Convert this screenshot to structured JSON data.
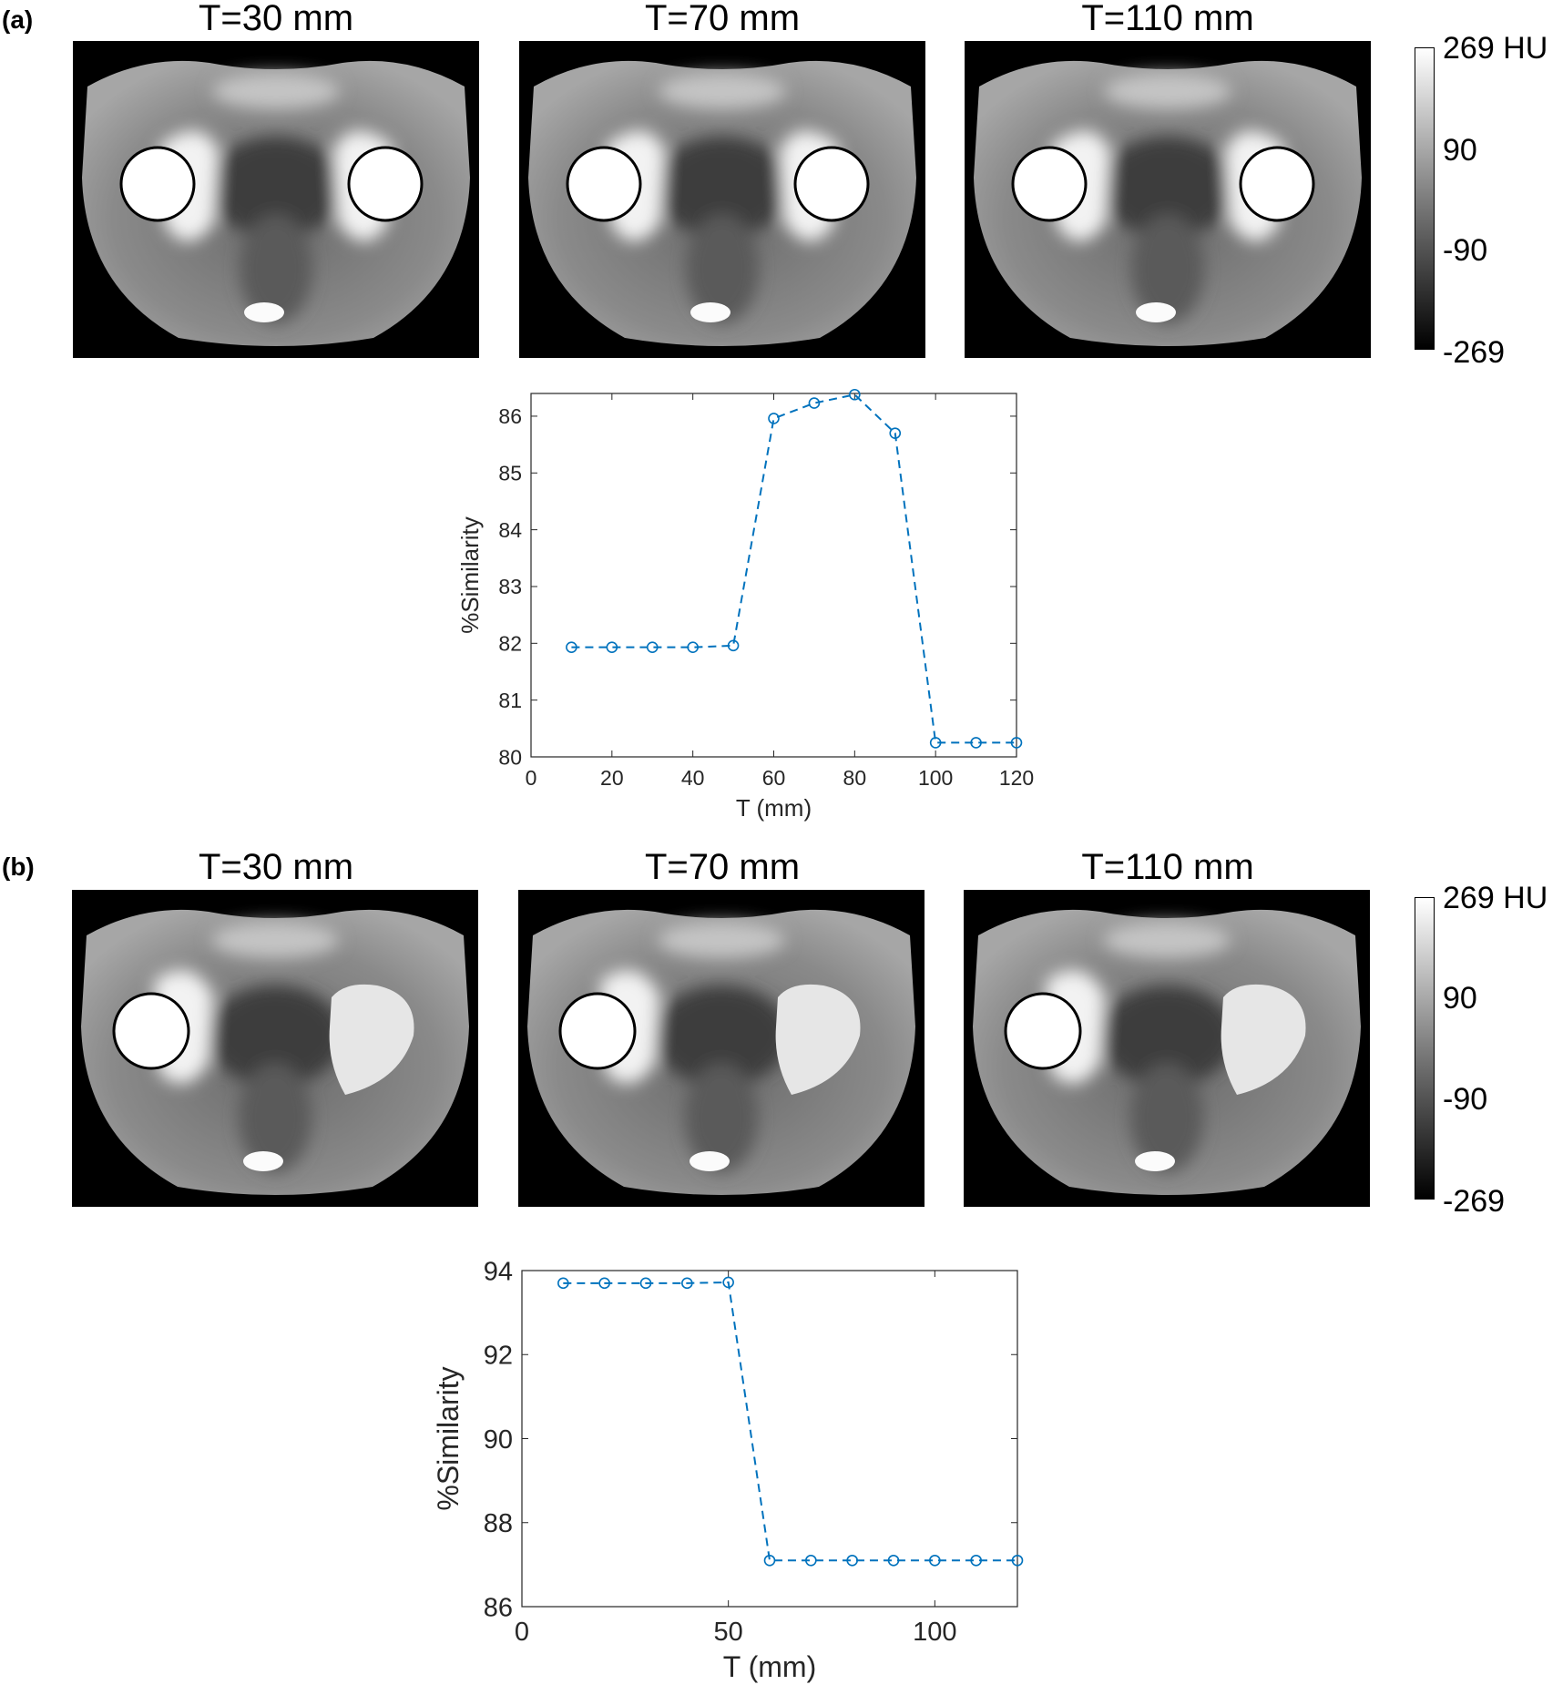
{
  "panels": [
    {
      "letter": "(a)",
      "images": [
        {
          "title": "T=30 mm"
        },
        {
          "title": "T=70 mm"
        },
        {
          "title": "T=110 mm"
        }
      ],
      "colorbar": {
        "ticks": [
          "269 HU",
          "90",
          "-90",
          "-269"
        ]
      }
    },
    {
      "letter": "(b)",
      "images": [
        {
          "title": "T=30 mm"
        },
        {
          "title": "T=70 mm"
        },
        {
          "title": "T=110 mm"
        }
      ],
      "colorbar": {
        "ticks": [
          "269 HU",
          "90",
          "-90",
          "-269"
        ]
      }
    }
  ],
  "chart_data": [
    {
      "type": "line",
      "xlabel": "T (mm)",
      "ylabel": "%Similarity",
      "xlim": [
        0,
        120
      ],
      "ylim": [
        80,
        86.4
      ],
      "xticks": [
        0,
        20,
        40,
        60,
        80,
        100,
        120
      ],
      "yticks": [
        80,
        81,
        82,
        83,
        84,
        85,
        86
      ],
      "color": "#0072BD",
      "line_style": "dashed",
      "marker": "circle",
      "x": [
        10,
        20,
        30,
        40,
        50,
        60,
        70,
        80,
        90,
        100,
        110,
        120
      ],
      "y": [
        81.93,
        81.93,
        81.93,
        81.93,
        81.96,
        85.96,
        86.23,
        86.38,
        85.7,
        80.25,
        80.25,
        80.25
      ]
    },
    {
      "type": "line",
      "xlabel": "T (mm)",
      "ylabel": "%Similarity",
      "xlim": [
        0,
        120
      ],
      "ylim": [
        86,
        94
      ],
      "xticks": [
        0,
        50,
        100
      ],
      "yticks": [
        86,
        88,
        90,
        92,
        94
      ],
      "color": "#0072BD",
      "line_style": "dashed",
      "marker": "circle",
      "x": [
        10,
        20,
        30,
        40,
        50,
        60,
        70,
        80,
        90,
        100,
        110,
        120
      ],
      "y": [
        93.7,
        93.7,
        93.7,
        93.7,
        93.72,
        87.1,
        87.1,
        87.1,
        87.1,
        87.1,
        87.1,
        87.1
      ]
    }
  ]
}
